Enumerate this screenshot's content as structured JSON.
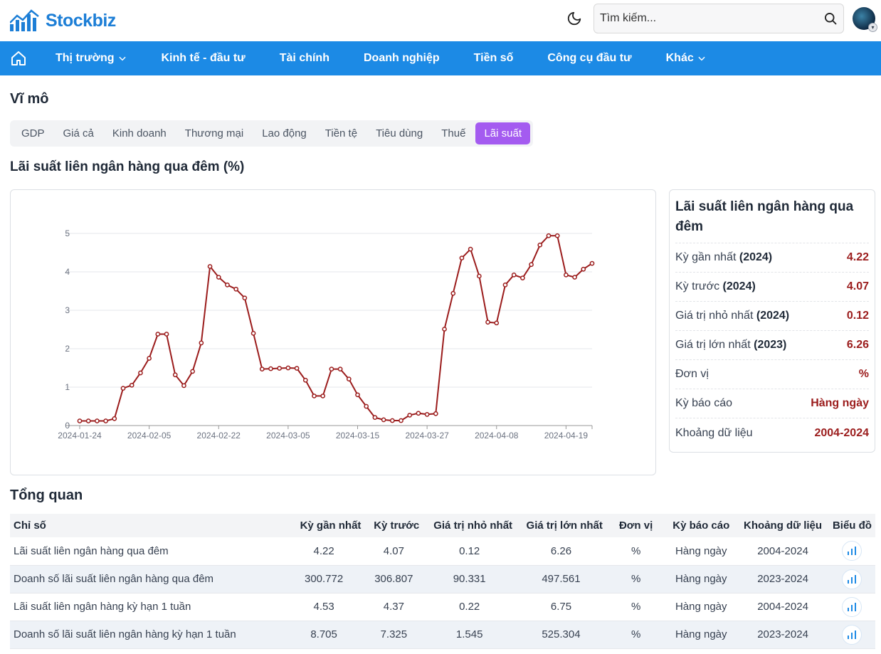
{
  "header": {
    "logo_text": "Stockbiz",
    "search_placeholder": "Tìm kiếm...",
    "brand_color": "#1c7ed6"
  },
  "nav": {
    "color": "#1c8ae5",
    "items": [
      {
        "label": "Thị trường",
        "dropdown": true
      },
      {
        "label": "Kinh tế - đầu tư",
        "dropdown": false
      },
      {
        "label": "Tài chính",
        "dropdown": false
      },
      {
        "label": "Doanh nghiệp",
        "dropdown": false
      },
      {
        "label": "Tiền số",
        "dropdown": false
      },
      {
        "label": "Công cụ đầu tư",
        "dropdown": false
      },
      {
        "label": "Khác",
        "dropdown": true
      }
    ]
  },
  "page": {
    "title": "Vĩ mô",
    "tabs": [
      "GDP",
      "Giá cả",
      "Kinh doanh",
      "Thương mại",
      "Lao động",
      "Tiền tệ",
      "Tiêu dùng",
      "Thuế",
      "Lãi suất"
    ],
    "active_tab": "Lãi suất",
    "active_color": "#a45bf0",
    "section_title": "Lãi suất liên ngân hàng qua đêm (%)"
  },
  "chart_data": {
    "type": "line",
    "title": "",
    "xlabel": "",
    "ylabel": "",
    "ylim": [
      0,
      5
    ],
    "yticks": [
      0,
      1,
      2,
      3,
      4,
      5
    ],
    "xticks": [
      "2024-01-24",
      "2024-02-05",
      "2024-02-22",
      "2024-03-05",
      "2024-03-15",
      "2024-03-27",
      "2024-04-08",
      "2024-04-19"
    ],
    "xtick_index": [
      0,
      8,
      16,
      24,
      32,
      40,
      48,
      56
    ],
    "line_color": "#9b1c1c",
    "grid": true,
    "series": [
      {
        "values": [
          0.12,
          0.12,
          0.12,
          0.12,
          0.18,
          0.97,
          1.05,
          1.37,
          1.75,
          2.38,
          2.38,
          1.32,
          1.04,
          1.41,
          2.15,
          4.14,
          3.86,
          3.66,
          3.55,
          3.32,
          2.4,
          1.47,
          1.48,
          1.49,
          1.5,
          1.49,
          1.18,
          0.77,
          0.77,
          1.47,
          1.47,
          1.21,
          0.8,
          0.5,
          0.21,
          0.15,
          0.13,
          0.13,
          0.27,
          0.32,
          0.29,
          0.31,
          2.51,
          3.44,
          4.36,
          4.59,
          3.89,
          2.69,
          2.67,
          3.66,
          3.92,
          3.84,
          4.19,
          4.7,
          4.94,
          4.94,
          3.92,
          3.86,
          4.07,
          4.22
        ]
      }
    ]
  },
  "info_card": {
    "title": "Lãi suất liên ngân hàng qua đêm",
    "rows": [
      {
        "label": "Kỳ gần nhất",
        "year": "(2024)",
        "value": "4.22"
      },
      {
        "label": "Kỳ trước",
        "year": "(2024)",
        "value": "4.07"
      },
      {
        "label": "Giá trị nhỏ nhất",
        "year": "(2024)",
        "value": "0.12"
      },
      {
        "label": "Giá trị lớn nhất",
        "year": "(2023)",
        "value": "6.26"
      },
      {
        "label": "Đơn vị",
        "year": "",
        "value": "%"
      },
      {
        "label": "Kỳ báo cáo",
        "year": "",
        "value": "Hàng ngày"
      },
      {
        "label": "Khoảng dữ liệu",
        "year": "",
        "value": "2004-2024"
      }
    ]
  },
  "overview": {
    "title": "Tổng quan",
    "columns": [
      "Chỉ số",
      "Kỳ gần nhất",
      "Kỳ trước",
      "Giá trị nhỏ nhất",
      "Giá trị lớn nhất",
      "Đơn vị",
      "Kỳ báo cáo",
      "Khoảng dữ liệu",
      "Biểu đồ"
    ],
    "rows": [
      [
        "Lãi suất liên ngân hàng qua đêm",
        "4.22",
        "4.07",
        "0.12",
        "6.26",
        "%",
        "Hàng ngày",
        "2004-2024"
      ],
      [
        "Doanh số lãi suất liên ngân hàng qua đêm",
        "300.772",
        "306.807",
        "90.331",
        "497.561",
        "%",
        "Hàng ngày",
        "2023-2024"
      ],
      [
        "Lãi suất liên ngân hàng kỳ hạn 1 tuần",
        "4.53",
        "4.37",
        "0.22",
        "6.75",
        "%",
        "Hàng ngày",
        "2004-2024"
      ],
      [
        "Doanh số lãi suất liên ngân hàng kỳ hạn 1 tuần",
        "8.705",
        "7.325",
        "1.545",
        "525.304",
        "%",
        "Hàng ngày",
        "2023-2024"
      ]
    ]
  }
}
